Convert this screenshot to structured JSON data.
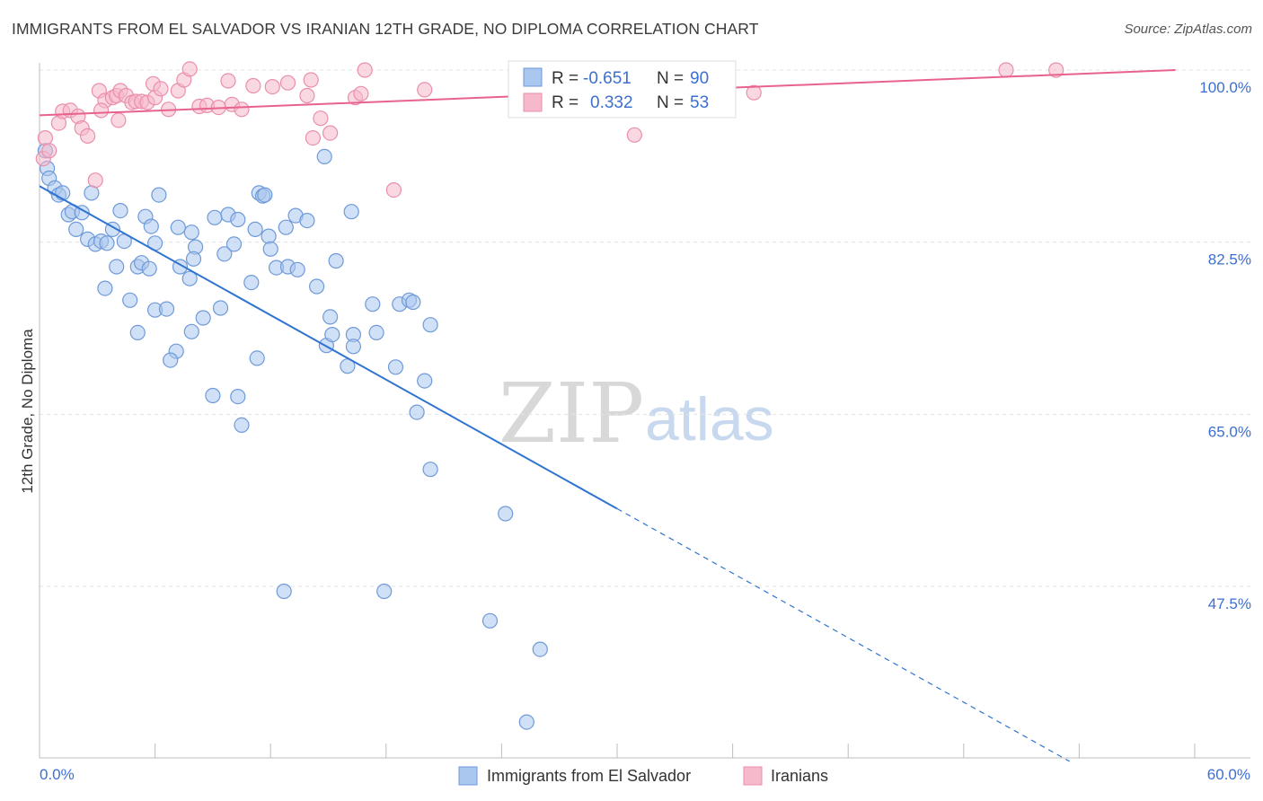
{
  "title": "IMMIGRANTS FROM EL SALVADOR VS IRANIAN 12TH GRADE, NO DIPLOMA CORRELATION CHART",
  "source": "Source: ZipAtlas.com",
  "watermark": {
    "zip": "ZIP",
    "atlas": "atlas"
  },
  "colors": {
    "blue_fill": "#a9c7ef",
    "blue_stroke": "#6f9ad8",
    "blue_line": "#2f74d0",
    "pink_fill": "#f6b8cb",
    "pink_stroke": "#ea8fab",
    "pink_line": "#e8628e",
    "tick_text": "#3d6fd0",
    "grid": "#e3e3e3"
  },
  "chart_data": {
    "type": "scatter",
    "xlabel": "",
    "ylabel": "12th Grade, No Diploma",
    "xlim": [
      0,
      60
    ],
    "ylim": [
      32,
      102
    ],
    "x_tick_labels": [
      "0.0%",
      "60.0%"
    ],
    "y_ticks": [
      100,
      82.5,
      65,
      47.5
    ],
    "y_tick_labels": [
      "100.0%",
      "82.5%",
      "65.0%",
      "47.5%"
    ],
    "grid": true,
    "legend_position": "bottom-center",
    "stats": [
      {
        "r_label": "R =",
        "r_value": "-0.651",
        "n_label": "N =",
        "n_value": "90"
      },
      {
        "r_label": "R =",
        "r_value": "0.332",
        "n_label": "N =",
        "n_value": "53"
      }
    ],
    "series": [
      {
        "name": "Immigrants from El Salvador",
        "color": "#a9c7ef",
        "trend": {
          "x0": 0,
          "y0": 88.2,
          "x1": 30,
          "y1": 55.4,
          "dashed_to_x": 53.5
        },
        "points": [
          [
            0.3,
            91.8
          ],
          [
            0.4,
            90
          ],
          [
            0.5,
            89
          ],
          [
            0.8,
            88
          ],
          [
            1.0,
            87.3
          ],
          [
            1.2,
            87.5
          ],
          [
            1.5,
            85.3
          ],
          [
            1.7,
            85.6
          ],
          [
            2.2,
            85.5
          ],
          [
            2.7,
            87.5
          ],
          [
            1.9,
            83.8
          ],
          [
            2.5,
            82.8
          ],
          [
            2.9,
            82.3
          ],
          [
            3.2,
            82.6
          ],
          [
            3.5,
            82.4
          ],
          [
            4.4,
            82.6
          ],
          [
            3.8,
            83.8
          ],
          [
            4.2,
            85.7
          ],
          [
            5.5,
            85.1
          ],
          [
            6.2,
            87.3
          ],
          [
            5.8,
            84.1
          ],
          [
            6.0,
            82.4
          ],
          [
            7.2,
            84
          ],
          [
            7.9,
            83.5
          ],
          [
            8.1,
            82
          ],
          [
            9.1,
            85
          ],
          [
            9.8,
            85.3
          ],
          [
            10.3,
            84.8
          ],
          [
            11.2,
            83.8
          ],
          [
            11.9,
            83.1
          ],
          [
            12.0,
            81.8
          ],
          [
            12.8,
            84
          ],
          [
            13.3,
            85.2
          ],
          [
            13.9,
            84.7
          ],
          [
            4.0,
            80.0
          ],
          [
            5.1,
            80
          ],
          [
            5.3,
            80.4
          ],
          [
            5.7,
            79.8
          ],
          [
            7.3,
            80
          ],
          [
            7.8,
            78.8
          ],
          [
            8.0,
            80.8
          ],
          [
            9.6,
            81.3
          ],
          [
            10.1,
            82.3
          ],
          [
            12.3,
            79.9
          ],
          [
            12.9,
            80
          ],
          [
            13.4,
            79.7
          ],
          [
            15.4,
            80.6
          ],
          [
            11.0,
            78.4
          ],
          [
            14.4,
            78
          ],
          [
            3.4,
            77.8
          ],
          [
            4.7,
            76.6
          ],
          [
            6.0,
            75.6
          ],
          [
            6.6,
            75.7
          ],
          [
            8.5,
            74.8
          ],
          [
            9.4,
            75.8
          ],
          [
            7.9,
            73.4
          ],
          [
            5.1,
            73.3
          ],
          [
            7.1,
            71.4
          ],
          [
            6.8,
            70.5
          ],
          [
            11.3,
            70.7
          ],
          [
            14.9,
            72
          ],
          [
            15.2,
            73.1
          ],
          [
            15.1,
            74.9
          ],
          [
            16.3,
            73.1
          ],
          [
            16.3,
            71.9
          ],
          [
            17.5,
            73.3
          ],
          [
            16.0,
            69.9
          ],
          [
            17.3,
            76.2
          ],
          [
            18.7,
            76.2
          ],
          [
            19.2,
            76.6
          ],
          [
            19.4,
            76.4
          ],
          [
            20.3,
            74.1
          ],
          [
            18.5,
            69.8
          ],
          [
            20.0,
            68.4
          ],
          [
            19.6,
            65.2
          ],
          [
            9.0,
            66.9
          ],
          [
            10.3,
            66.8
          ],
          [
            10.5,
            63.9
          ],
          [
            14.8,
            91.2
          ],
          [
            11.4,
            87.5
          ],
          [
            16.2,
            85.6
          ],
          [
            20.3,
            59.4
          ],
          [
            24.2,
            54.9
          ],
          [
            12.7,
            47
          ],
          [
            17.9,
            47
          ],
          [
            23.4,
            44
          ],
          [
            26.0,
            41.1
          ],
          [
            25.3,
            33.7
          ],
          [
            11.6,
            87.2
          ],
          [
            11.7,
            87.3
          ]
        ]
      },
      {
        "name": "Iranians",
        "color": "#f6b8cb",
        "trend": {
          "x0": 0,
          "y0": 95.4,
          "x1": 59,
          "y1": 100
        },
        "points": [
          [
            0.2,
            91
          ],
          [
            0.3,
            93.1
          ],
          [
            0.5,
            91.8
          ],
          [
            1.0,
            94.6
          ],
          [
            1.2,
            95.8
          ],
          [
            1.6,
            95.9
          ],
          [
            2.0,
            95.3
          ],
          [
            2.2,
            94.1
          ],
          [
            2.5,
            93.3
          ],
          [
            3.1,
            97.9
          ],
          [
            3.4,
            96.9
          ],
          [
            3.8,
            97.2
          ],
          [
            4.0,
            97.4
          ],
          [
            4.2,
            97.9
          ],
          [
            4.5,
            97.4
          ],
          [
            4.8,
            96.7
          ],
          [
            5.0,
            96.8
          ],
          [
            5.3,
            96.8
          ],
          [
            5.6,
            96.7
          ],
          [
            5.9,
            98.6
          ],
          [
            6.0,
            97.2
          ],
          [
            6.3,
            98.1
          ],
          [
            6.7,
            96
          ],
          [
            7.2,
            97.9
          ],
          [
            7.5,
            99
          ],
          [
            7.8,
            100.1
          ],
          [
            8.3,
            96.3
          ],
          [
            8.7,
            96.4
          ],
          [
            9.3,
            96.2
          ],
          [
            9.8,
            98.9
          ],
          [
            10.0,
            96.5
          ],
          [
            10.5,
            96.0
          ],
          [
            11.1,
            98.4
          ],
          [
            12.1,
            98.3
          ],
          [
            12.9,
            98.7
          ],
          [
            13.9,
            97.4
          ],
          [
            14.1,
            99
          ],
          [
            14.6,
            95.1
          ],
          [
            15.1,
            93.6
          ],
          [
            14.2,
            93.1
          ],
          [
            16.4,
            97.2
          ],
          [
            16.7,
            97.6
          ],
          [
            16.9,
            100
          ],
          [
            20.0,
            98
          ],
          [
            30.9,
            93.4
          ],
          [
            35.2,
            100
          ],
          [
            37.1,
            97.7
          ],
          [
            50.2,
            100
          ],
          [
            52.8,
            100
          ],
          [
            4.1,
            94.9
          ],
          [
            3.2,
            95.9
          ],
          [
            2.9,
            88.8
          ],
          [
            18.4,
            87.8
          ]
        ]
      }
    ]
  },
  "legend": {
    "items": [
      {
        "label": "Immigrants from El Salvador"
      },
      {
        "label": "Iranians"
      }
    ]
  }
}
